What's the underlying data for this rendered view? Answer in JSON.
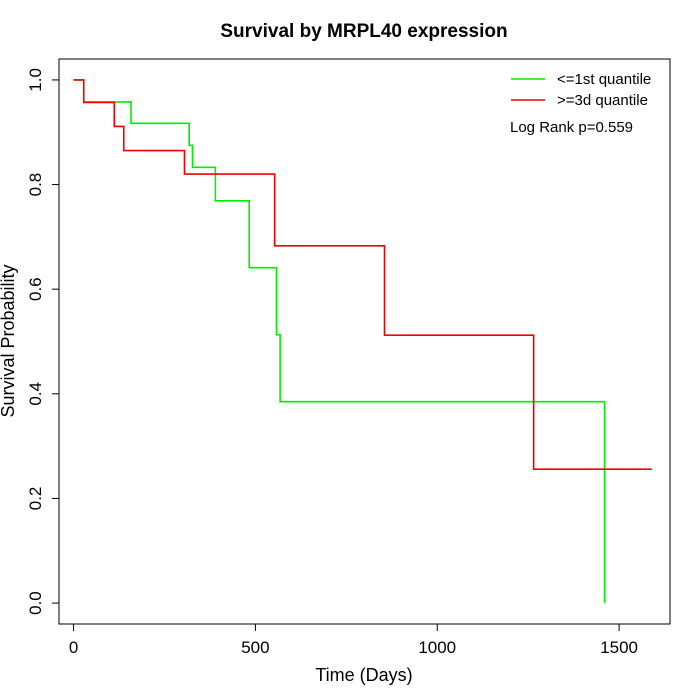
{
  "chart_data": {
    "type": "line",
    "title": "Survival by MRPL40 expression",
    "xlabel": "Time (Days)",
    "ylabel": "Survival Probability",
    "xlim": [
      -40,
      1640
    ],
    "ylim": [
      -0.04,
      1.04
    ],
    "x_ticks": [
      0,
      500,
      1000,
      1500
    ],
    "y_ticks": [
      0.0,
      0.2,
      0.4,
      0.6,
      0.8,
      1.0
    ],
    "x_tick_labels": [
      "0",
      "500",
      "1000",
      "1500"
    ],
    "y_tick_labels": [
      "0.0",
      "0.2",
      "0.4",
      "0.6",
      "0.8",
      "1.0"
    ],
    "grid": false,
    "legend_position": "top-right",
    "annotation": "Log Rank p=0.559",
    "series": [
      {
        "name": "<=1st quantile",
        "color": "#00ee00",
        "step": true,
        "x": [
          0,
          28,
          158,
          318,
          327,
          390,
          483,
          558,
          568,
          1460,
          1460
        ],
        "y": [
          1.0,
          0.958,
          0.917,
          0.875,
          0.833,
          0.769,
          0.641,
          0.513,
          0.385,
          0.385,
          0.0
        ]
      },
      {
        "name": ">=3d quantile",
        "color": "#ee0000",
        "step": true,
        "x": [
          0,
          28,
          112,
          138,
          305,
          553,
          855,
          1265,
          1590
        ],
        "y": [
          1.0,
          0.957,
          0.911,
          0.865,
          0.82,
          0.683,
          0.512,
          0.256,
          0.256
        ]
      }
    ]
  }
}
